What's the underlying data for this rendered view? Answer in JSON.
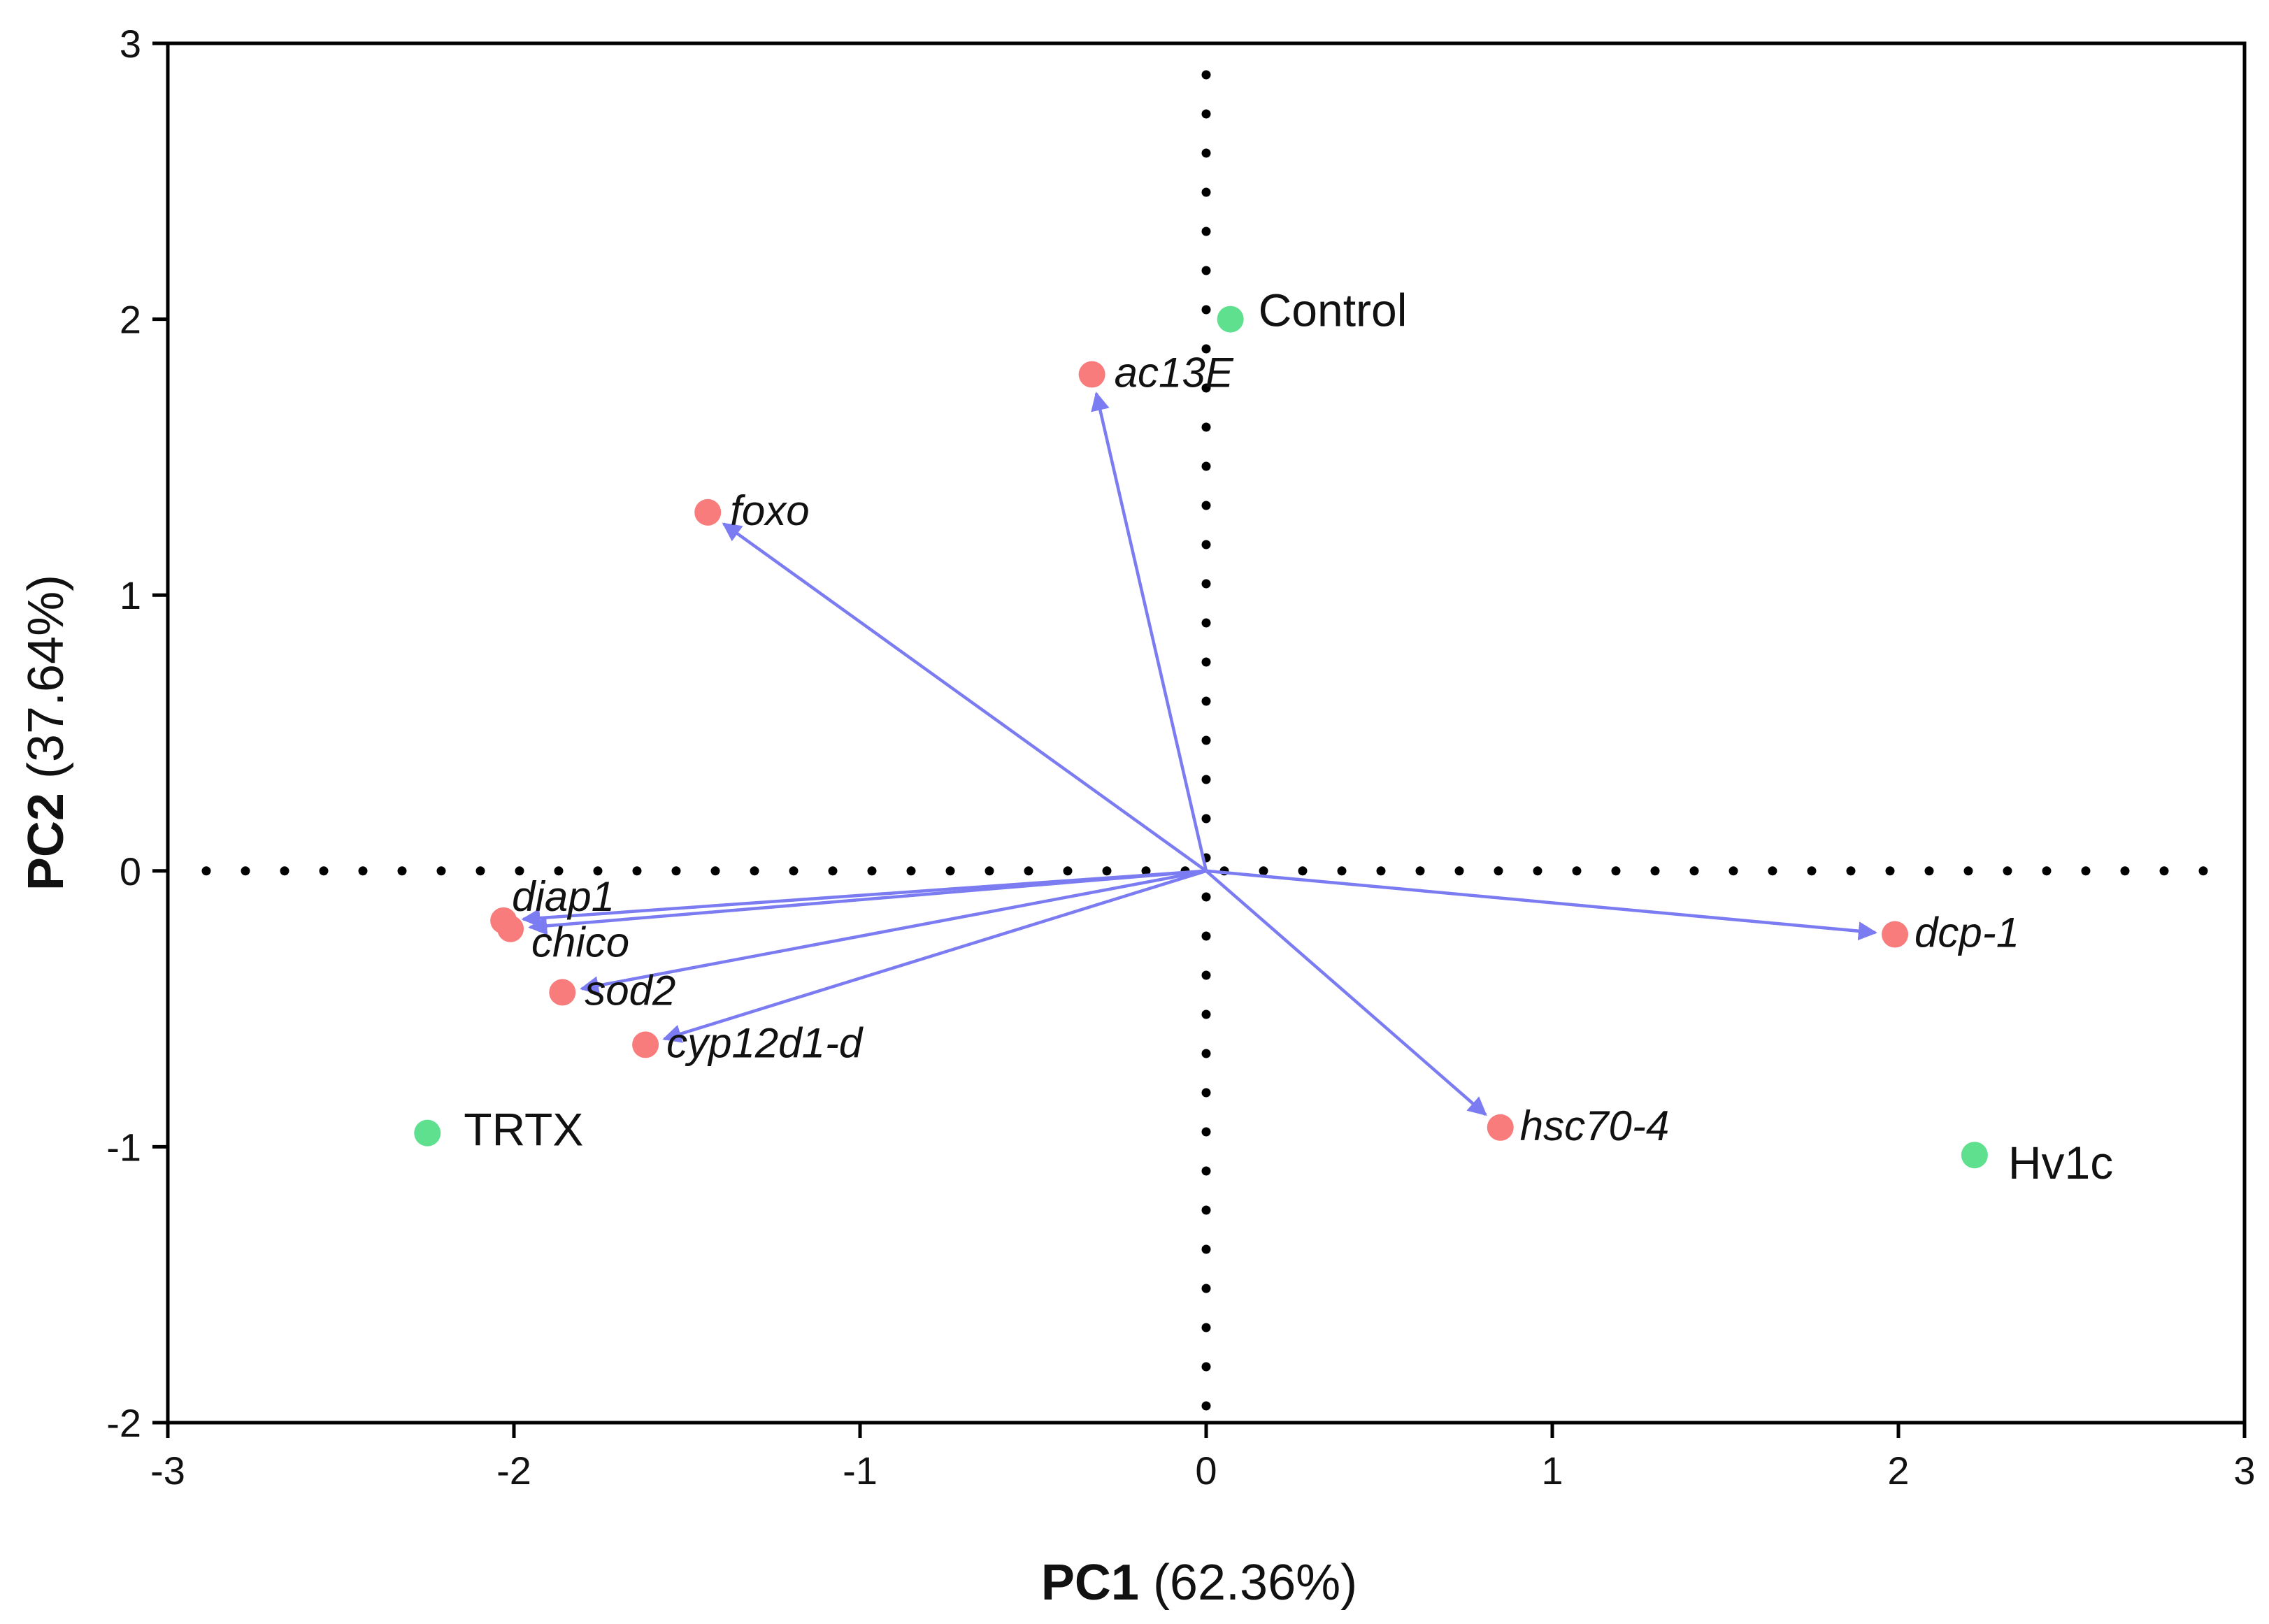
{
  "chart_data": {
    "type": "scatter",
    "subtype": "pca-biplot",
    "title": "",
    "xlabel": {
      "bold": "PC1",
      "rest": " (62.36%)"
    },
    "ylabel": {
      "bold": "PC2",
      "rest": " (37.64%)"
    },
    "xlim": [
      -3,
      3
    ],
    "ylim": [
      -2,
      3
    ],
    "xticks": [
      -3,
      -2,
      -1,
      0,
      1,
      2,
      3
    ],
    "yticks": [
      -2,
      -1,
      0,
      1,
      2,
      3
    ],
    "reference_lines": {
      "x": 0,
      "y": 0,
      "style": "dotted"
    },
    "series": [
      {
        "name": "samples",
        "color": "#5ee08f",
        "points": [
          {
            "label": "Control",
            "x": 0.07,
            "y": 2.0
          },
          {
            "label": "TRTX",
            "x": -2.25,
            "y": -0.95
          },
          {
            "label": "Hv1c",
            "x": 2.22,
            "y": -1.03
          }
        ]
      },
      {
        "name": "genes",
        "color": "#f87c7c",
        "arrow_color": "#7b7bf2",
        "arrows_from_origin": true,
        "points": [
          {
            "label": "ac13E",
            "x": -0.33,
            "y": 1.8
          },
          {
            "label": "foxo",
            "x": -1.44,
            "y": 1.3
          },
          {
            "label": "diap1",
            "x": -2.03,
            "y": -0.18
          },
          {
            "label": "chico",
            "x": -2.01,
            "y": -0.21
          },
          {
            "label": "sod2",
            "x": -1.86,
            "y": -0.44
          },
          {
            "label": "cyp12d1-d",
            "x": -1.62,
            "y": -0.63
          },
          {
            "label": "dcp-1",
            "x": 1.99,
            "y": -0.23
          },
          {
            "label": "hsc70-4",
            "x": 0.85,
            "y": -0.93
          }
        ]
      }
    ]
  }
}
